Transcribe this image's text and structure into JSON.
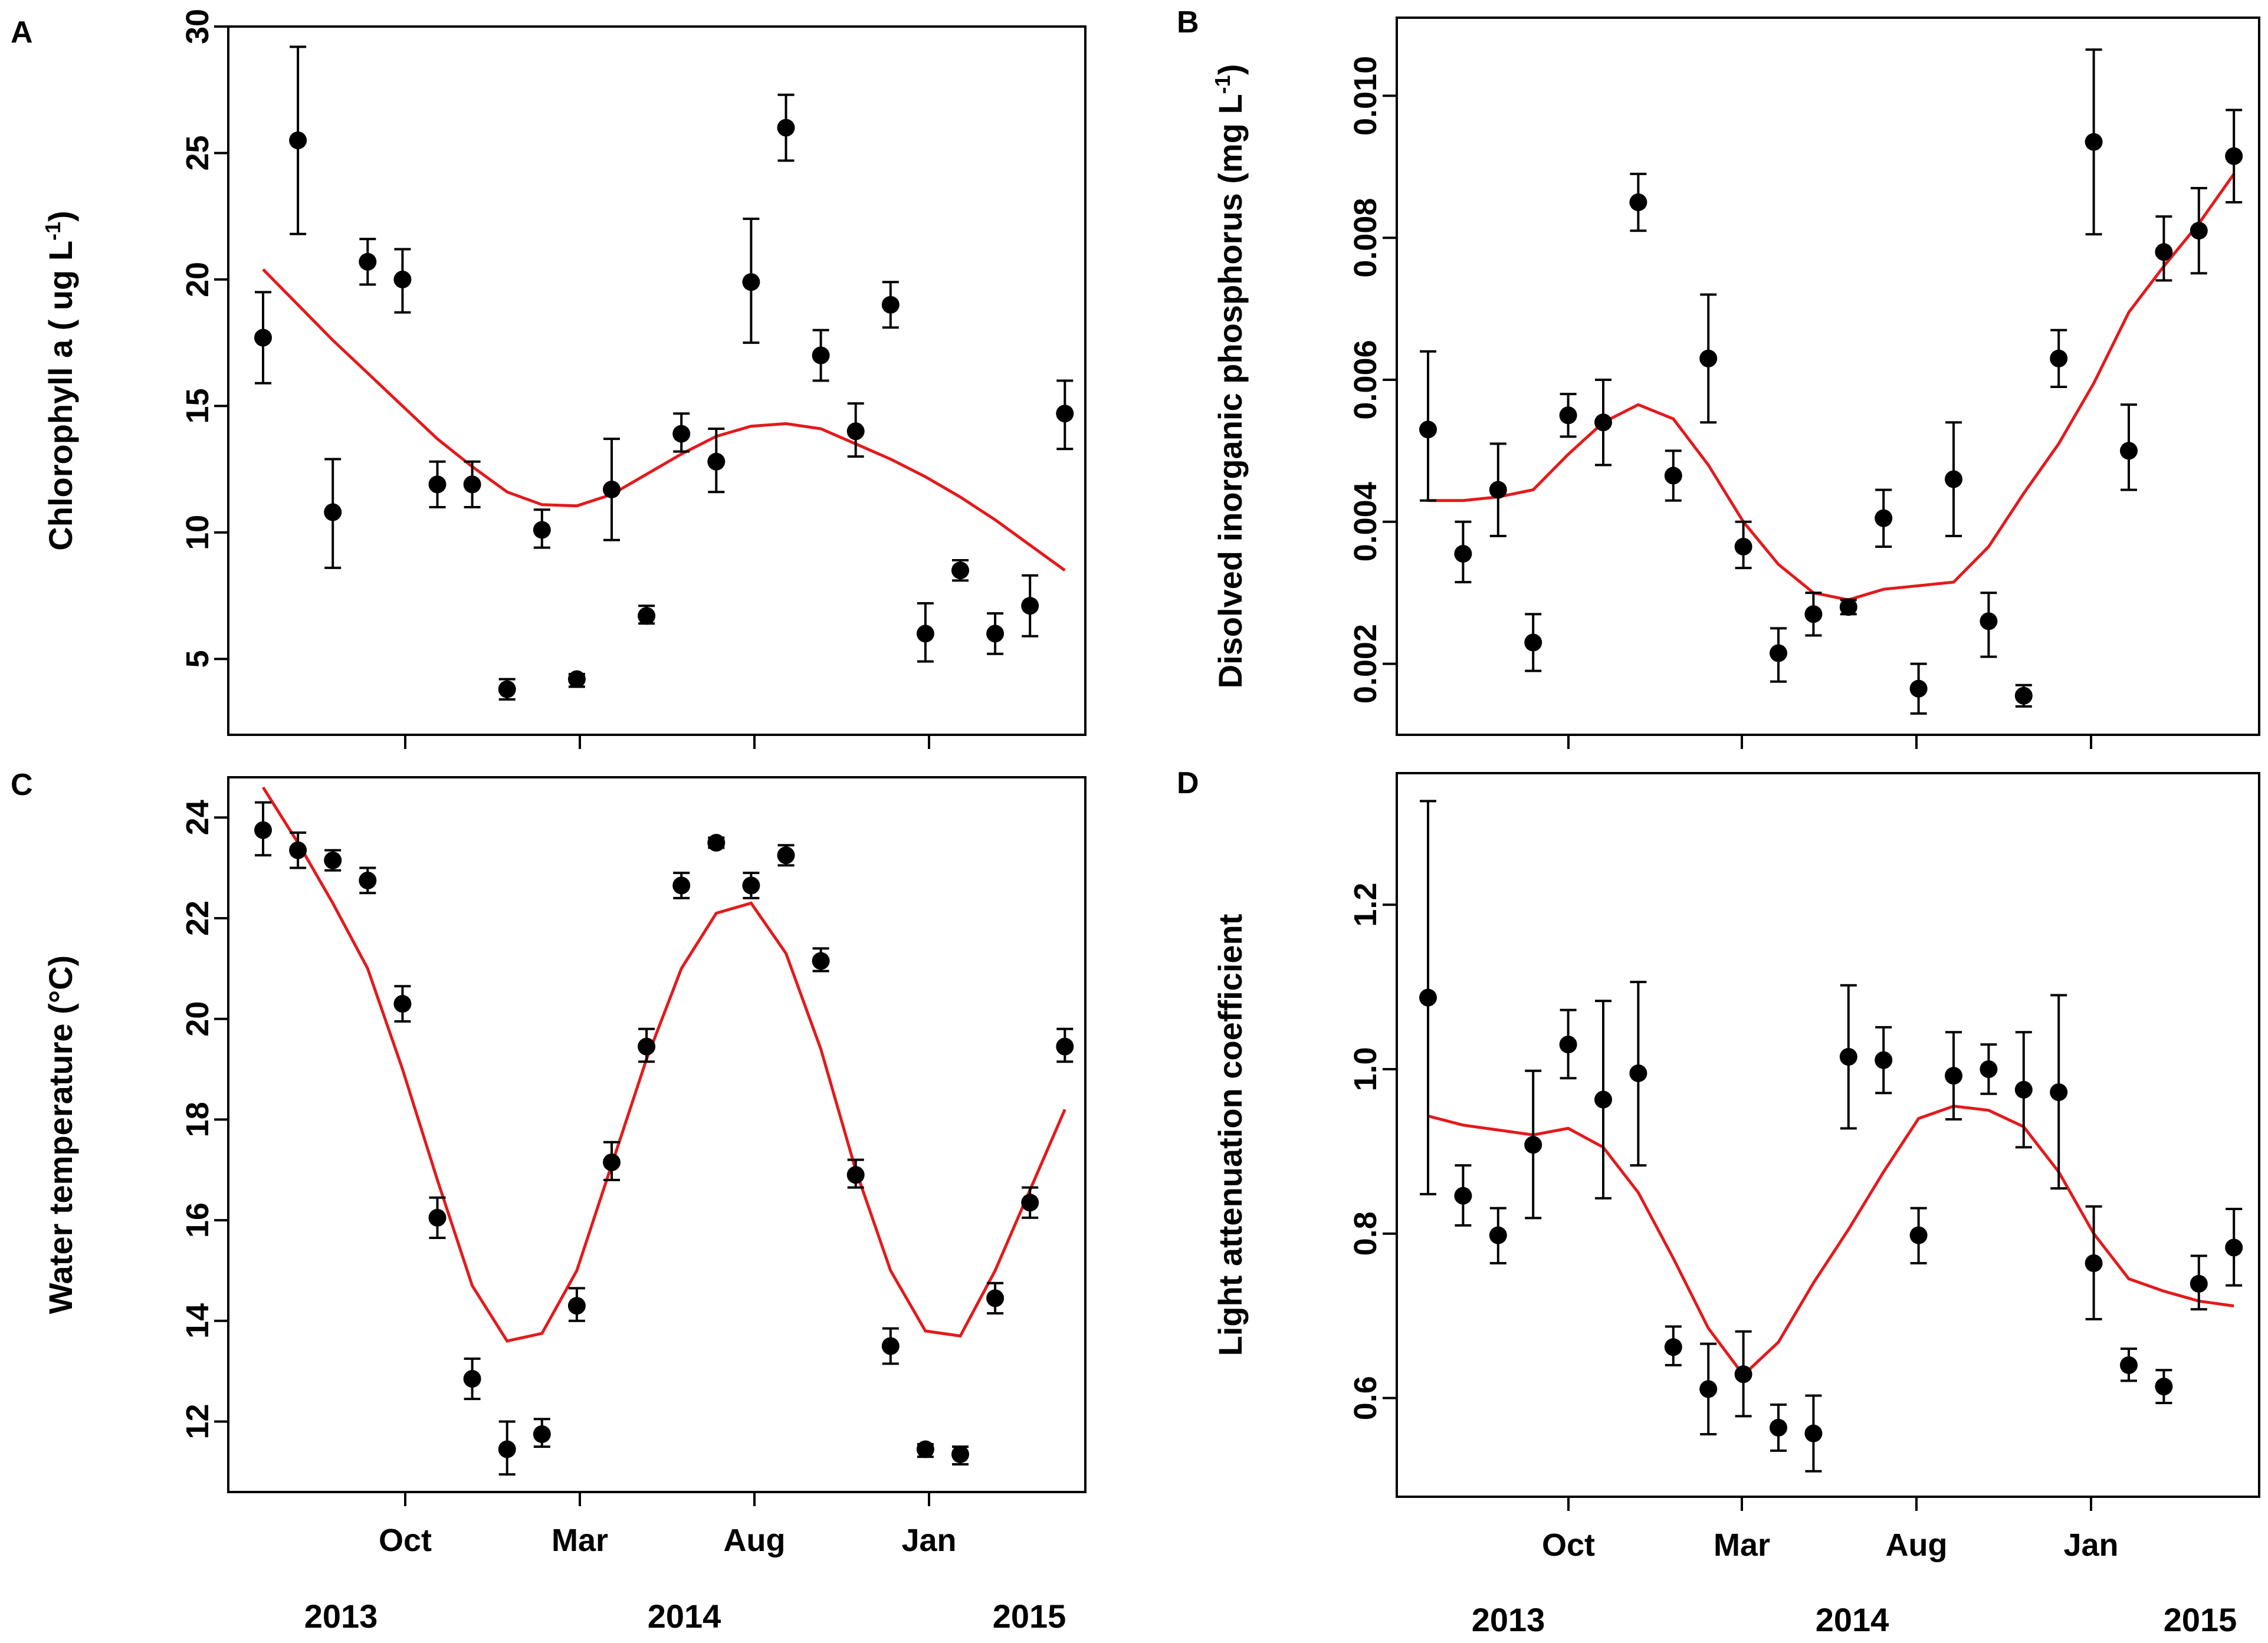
{
  "figure": {
    "years": [
      "2013",
      "2014",
      "2015"
    ],
    "month_ticks": [
      "Oct",
      "Mar",
      "Aug",
      "Jan"
    ]
  },
  "colors": {
    "fit_line": "#e31a1c",
    "points": "#000000"
  },
  "chart_data": [
    {
      "panel": "A",
      "type": "scatter",
      "ylabel_main": "Chlorophyll a ( ug L",
      "ylabel_sup": "-1",
      "ylabel_end": ")",
      "ylim": [
        2,
        30
      ],
      "yticks": [
        5,
        10,
        15,
        20,
        25,
        30
      ],
      "ytick_labels": [
        "5",
        "10",
        "15",
        "20",
        "25",
        "30"
      ],
      "xticks": [
        "Oct",
        "Mar",
        "Aug",
        "Jan"
      ],
      "show_month_labels": false,
      "points": [
        {
          "x": 0,
          "y": 17.7,
          "lo": 15.9,
          "hi": 19.5
        },
        {
          "x": 1,
          "y": 25.5,
          "lo": 21.8,
          "hi": 29.2
        },
        {
          "x": 2,
          "y": 10.8,
          "lo": 8.6,
          "hi": 12.9
        },
        {
          "x": 3,
          "y": 20.7,
          "lo": 19.8,
          "hi": 21.6
        },
        {
          "x": 4,
          "y": 20.0,
          "lo": 18.7,
          "hi": 21.2
        },
        {
          "x": 5,
          "y": 11.9,
          "lo": 11.0,
          "hi": 12.8
        },
        {
          "x": 6,
          "y": 11.9,
          "lo": 11.0,
          "hi": 12.8
        },
        {
          "x": 7,
          "y": 3.8,
          "lo": 3.4,
          "hi": 4.2
        },
        {
          "x": 8,
          "y": 10.1,
          "lo": 9.4,
          "hi": 10.9
        },
        {
          "x": 9,
          "y": 4.2,
          "lo": 3.9,
          "hi": 4.4
        },
        {
          "x": 10,
          "y": 11.7,
          "lo": 9.7,
          "hi": 13.7
        },
        {
          "x": 11,
          "y": 6.7,
          "lo": 6.4,
          "hi": 7.1
        },
        {
          "x": 12,
          "y": 13.9,
          "lo": 13.2,
          "hi": 14.7
        },
        {
          "x": 13,
          "y": 12.8,
          "lo": 11.6,
          "hi": 14.1
        },
        {
          "x": 14,
          "y": 19.9,
          "lo": 17.5,
          "hi": 22.4
        },
        {
          "x": 15,
          "y": 26.0,
          "lo": 24.7,
          "hi": 27.3
        },
        {
          "x": 16,
          "y": 17.0,
          "lo": 16.0,
          "hi": 18.0
        },
        {
          "x": 17,
          "y": 14.0,
          "lo": 13.0,
          "hi": 15.1
        },
        {
          "x": 18,
          "y": 19.0,
          "lo": 18.1,
          "hi": 19.9
        },
        {
          "x": 19,
          "y": 6.0,
          "lo": 4.9,
          "hi": 7.2
        },
        {
          "x": 20,
          "y": 8.5,
          "lo": 8.1,
          "hi": 8.9
        },
        {
          "x": 21,
          "y": 6.0,
          "lo": 5.2,
          "hi": 6.8
        },
        {
          "x": 22,
          "y": 7.1,
          "lo": 5.9,
          "hi": 8.3
        },
        {
          "x": 23,
          "y": 14.7,
          "lo": 13.3,
          "hi": 16.0
        }
      ],
      "fit": [
        20.4,
        19.0,
        17.6,
        16.3,
        15.0,
        13.7,
        12.6,
        11.6,
        11.1,
        11.05,
        11.5,
        12.3,
        13.1,
        13.8,
        14.2,
        14.3,
        14.1,
        13.5,
        12.9,
        12.2,
        11.4,
        10.5,
        9.5,
        8.5
      ]
    },
    {
      "panel": "B",
      "type": "scatter",
      "ylabel_main": "Disolved inorganic phosphorus (mg L",
      "ylabel_sup": "-1",
      "ylabel_end": ")",
      "ylim": [
        0.001,
        0.0111
      ],
      "yticks": [
        0.002,
        0.004,
        0.006,
        0.008,
        0.01
      ],
      "ytick_labels": [
        "0.002",
        "0.004",
        "0.006",
        "0.008",
        "0.010"
      ],
      "xticks": [
        "Oct",
        "Mar",
        "Aug",
        "Jan"
      ],
      "show_month_labels": false,
      "points": [
        {
          "x": 0,
          "y": 0.0053,
          "lo": 0.0043,
          "hi": 0.0064
        },
        {
          "x": 1,
          "y": 0.00355,
          "lo": 0.00315,
          "hi": 0.004
        },
        {
          "x": 2,
          "y": 0.00445,
          "lo": 0.0038,
          "hi": 0.0051
        },
        {
          "x": 3,
          "y": 0.0023,
          "lo": 0.0019,
          "hi": 0.0027
        },
        {
          "x": 4,
          "y": 0.0055,
          "lo": 0.0052,
          "hi": 0.0058
        },
        {
          "x": 5,
          "y": 0.0054,
          "lo": 0.0048,
          "hi": 0.006
        },
        {
          "x": 6,
          "y": 0.0085,
          "lo": 0.0081,
          "hi": 0.0089
        },
        {
          "x": 7,
          "y": 0.00465,
          "lo": 0.0043,
          "hi": 0.005
        },
        {
          "x": 8,
          "y": 0.0063,
          "lo": 0.0054,
          "hi": 0.0072
        },
        {
          "x": 9,
          "y": 0.00365,
          "lo": 0.00335,
          "hi": 0.004
        },
        {
          "x": 10,
          "y": 0.00215,
          "lo": 0.00175,
          "hi": 0.0025
        },
        {
          "x": 11,
          "y": 0.0027,
          "lo": 0.0024,
          "hi": 0.003
        },
        {
          "x": 12,
          "y": 0.0028,
          "lo": 0.0027,
          "hi": 0.0029
        },
        {
          "x": 13,
          "y": 0.00405,
          "lo": 0.00365,
          "hi": 0.00445
        },
        {
          "x": 14,
          "y": 0.00165,
          "lo": 0.0013,
          "hi": 0.002
        },
        {
          "x": 15,
          "y": 0.0046,
          "lo": 0.0038,
          "hi": 0.0054
        },
        {
          "x": 16,
          "y": 0.0026,
          "lo": 0.0021,
          "hi": 0.003
        },
        {
          "x": 17,
          "y": 0.00155,
          "lo": 0.0014,
          "hi": 0.0017
        },
        {
          "x": 18,
          "y": 0.0063,
          "lo": 0.0059,
          "hi": 0.0067
        },
        {
          "x": 19,
          "y": 0.00935,
          "lo": 0.00805,
          "hi": 0.01065
        },
        {
          "x": 20,
          "y": 0.005,
          "lo": 0.00445,
          "hi": 0.00565
        },
        {
          "x": 21,
          "y": 0.0078,
          "lo": 0.0074,
          "hi": 0.0083
        },
        {
          "x": 22,
          "y": 0.0081,
          "lo": 0.0075,
          "hi": 0.0087
        },
        {
          "x": 23,
          "y": 0.00915,
          "lo": 0.0085,
          "hi": 0.0098
        }
      ],
      "fit": [
        0.0043,
        0.0043,
        0.00435,
        0.00445,
        0.00495,
        0.0054,
        0.00565,
        0.00545,
        0.0048,
        0.004,
        0.0034,
        0.003,
        0.0029,
        0.00305,
        0.0031,
        0.00315,
        0.00365,
        0.0044,
        0.0051,
        0.00595,
        0.00695,
        0.0076,
        0.0082,
        0.0089
      ]
    },
    {
      "panel": "C",
      "type": "scatter",
      "ylabel_main": "Water temperature (°C)",
      "ylabel_sup": "",
      "ylabel_end": "",
      "ylim": [
        10.6,
        24.8
      ],
      "yticks": [
        12,
        14,
        16,
        18,
        20,
        22,
        24
      ],
      "ytick_labels": [
        "12",
        "14",
        "16",
        "18",
        "20",
        "22",
        "24"
      ],
      "xticks": [
        "Oct",
        "Mar",
        "Aug",
        "Jan"
      ],
      "show_month_labels": true,
      "points": [
        {
          "x": 0,
          "y": 23.75,
          "lo": 23.25,
          "hi": 24.3
        },
        {
          "x": 1,
          "y": 23.35,
          "lo": 23.0,
          "hi": 23.7
        },
        {
          "x": 2,
          "y": 23.15,
          "lo": 22.95,
          "hi": 23.35
        },
        {
          "x": 3,
          "y": 22.75,
          "lo": 22.5,
          "hi": 23.0
        },
        {
          "x": 4,
          "y": 20.3,
          "lo": 19.95,
          "hi": 20.65
        },
        {
          "x": 5,
          "y": 16.05,
          "lo": 15.65,
          "hi": 16.45
        },
        {
          "x": 6,
          "y": 12.85,
          "lo": 12.45,
          "hi": 13.25
        },
        {
          "x": 7,
          "y": 11.45,
          "lo": 10.95,
          "hi": 12.0
        },
        {
          "x": 8,
          "y": 11.75,
          "lo": 11.5,
          "hi": 12.05
        },
        {
          "x": 9,
          "y": 14.3,
          "lo": 14.0,
          "hi": 14.65
        },
        {
          "x": 10,
          "y": 17.15,
          "lo": 16.8,
          "hi": 17.55
        },
        {
          "x": 11,
          "y": 19.45,
          "lo": 19.15,
          "hi": 19.8
        },
        {
          "x": 12,
          "y": 22.65,
          "lo": 22.4,
          "hi": 22.9
        },
        {
          "x": 13,
          "y": 23.5,
          "lo": 23.4,
          "hi": 23.6
        },
        {
          "x": 14,
          "y": 22.65,
          "lo": 22.4,
          "hi": 22.9
        },
        {
          "x": 15,
          "y": 23.25,
          "lo": 23.05,
          "hi": 23.45
        },
        {
          "x": 16,
          "y": 21.15,
          "lo": 20.95,
          "hi": 21.4
        },
        {
          "x": 17,
          "y": 16.9,
          "lo": 16.65,
          "hi": 17.2
        },
        {
          "x": 18,
          "y": 13.5,
          "lo": 13.15,
          "hi": 13.85
        },
        {
          "x": 19,
          "y": 11.45,
          "lo": 11.3,
          "hi": 11.55
        },
        {
          "x": 20,
          "y": 11.35,
          "lo": 11.15,
          "hi": 11.5
        },
        {
          "x": 21,
          "y": 14.45,
          "lo": 14.15,
          "hi": 14.75
        },
        {
          "x": 22,
          "y": 16.35,
          "lo": 16.05,
          "hi": 16.65
        },
        {
          "x": 23,
          "y": 19.45,
          "lo": 19.15,
          "hi": 19.8
        }
      ],
      "fit": [
        24.6,
        23.5,
        22.3,
        21.0,
        19.0,
        16.8,
        14.7,
        13.6,
        13.75,
        15.0,
        17.1,
        19.2,
        21.0,
        22.1,
        22.3,
        21.3,
        19.4,
        17.0,
        15.0,
        13.8,
        13.7,
        15.0,
        16.6,
        18.2
      ]
    },
    {
      "panel": "D",
      "type": "scatter",
      "ylabel_main": "Light attenuation coefficient",
      "ylabel_sup": "",
      "ylabel_end": "",
      "ylim": [
        0.48,
        1.36
      ],
      "yticks": [
        0.6,
        0.8,
        1.0,
        1.2
      ],
      "ytick_labels": [
        "0.6",
        "0.8",
        "1.0",
        "1.2"
      ],
      "xticks": [
        "Oct",
        "Mar",
        "Aug",
        "Jan"
      ],
      "show_month_labels": true,
      "points": [
        {
          "x": 0,
          "y": 1.087,
          "lo": 0.848,
          "hi": 1.326
        },
        {
          "x": 1,
          "y": 0.846,
          "lo": 0.81,
          "hi": 0.883
        },
        {
          "x": 2,
          "y": 0.798,
          "lo": 0.764,
          "hi": 0.831
        },
        {
          "x": 3,
          "y": 0.908,
          "lo": 0.819,
          "hi": 0.998
        },
        {
          "x": 4,
          "y": 1.03,
          "lo": 0.989,
          "hi": 1.072
        },
        {
          "x": 5,
          "y": 0.963,
          "lo": 0.843,
          "hi": 1.083
        },
        {
          "x": 6,
          "y": 0.995,
          "lo": 0.883,
          "hi": 1.106
        },
        {
          "x": 7,
          "y": 0.662,
          "lo": 0.64,
          "hi": 0.687
        },
        {
          "x": 8,
          "y": 0.611,
          "lo": 0.556,
          "hi": 0.666
        },
        {
          "x": 9,
          "y": 0.629,
          "lo": 0.578,
          "hi": 0.681
        },
        {
          "x": 10,
          "y": 0.564,
          "lo": 0.536,
          "hi": 0.592
        },
        {
          "x": 11,
          "y": 0.557,
          "lo": 0.511,
          "hi": 0.603
        },
        {
          "x": 12,
          "y": 1.015,
          "lo": 0.928,
          "hi": 1.102
        },
        {
          "x": 13,
          "y": 1.011,
          "lo": 0.971,
          "hi": 1.051
        },
        {
          "x": 14,
          "y": 0.798,
          "lo": 0.764,
          "hi": 0.831
        },
        {
          "x": 15,
          "y": 0.992,
          "lo": 0.939,
          "hi": 1.045
        },
        {
          "x": 16,
          "y": 1.0,
          "lo": 0.97,
          "hi": 1.03
        },
        {
          "x": 17,
          "y": 0.975,
          "lo": 0.905,
          "hi": 1.045
        },
        {
          "x": 18,
          "y": 0.972,
          "lo": 0.855,
          "hi": 1.09
        },
        {
          "x": 19,
          "y": 0.764,
          "lo": 0.696,
          "hi": 0.833
        },
        {
          "x": 20,
          "y": 0.64,
          "lo": 0.621,
          "hi": 0.66
        },
        {
          "x": 21,
          "y": 0.614,
          "lo": 0.594,
          "hi": 0.634
        },
        {
          "x": 22,
          "y": 0.739,
          "lo": 0.708,
          "hi": 0.773
        },
        {
          "x": 23,
          "y": 0.783,
          "lo": 0.737,
          "hi": 0.83
        }
      ],
      "fit": [
        0.943,
        0.932,
        0.926,
        0.92,
        0.928,
        0.905,
        0.85,
        0.77,
        0.685,
        0.628,
        0.668,
        0.74,
        0.805,
        0.875,
        0.94,
        0.955,
        0.95,
        0.93,
        0.875,
        0.8,
        0.745,
        0.73,
        0.718,
        0.712
      ]
    }
  ]
}
